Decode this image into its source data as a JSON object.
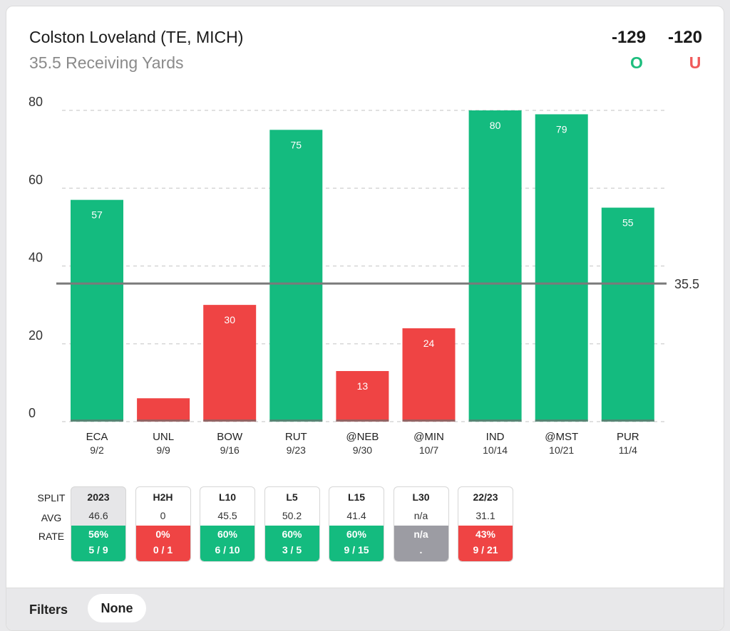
{
  "header": {
    "player": "Colston Loveland (TE, MICH)",
    "prop": "35.5 Receiving Yards",
    "over_odds": "-129",
    "under_odds": "-120",
    "over_label": "O",
    "under_label": "U"
  },
  "colors": {
    "over": "#14bb7f",
    "under": "#ef4444",
    "neutral": "#9c9ca3",
    "line": "#7a7a7a"
  },
  "chart_data": {
    "type": "bar",
    "title": "35.5 Receiving Yards",
    "ylim": [
      0,
      80
    ],
    "yticks": [
      0,
      20,
      40,
      60,
      80
    ],
    "grid": true,
    "threshold": 35.5,
    "threshold_label": "35.5",
    "categories": [
      "ECA",
      "UNL",
      "BOW",
      "RUT",
      "@NEB",
      "@MIN",
      "IND",
      "@MST",
      "PUR"
    ],
    "dates": [
      "9/2",
      "9/9",
      "9/16",
      "9/23",
      "9/30",
      "10/7",
      "10/14",
      "10/21",
      "11/4"
    ],
    "values": [
      57,
      6,
      30,
      75,
      13,
      24,
      80,
      79,
      55
    ],
    "value_labels": [
      "57",
      "",
      "30",
      "75",
      "13",
      "24",
      "80",
      "79",
      "55"
    ]
  },
  "splits": {
    "row_labels": [
      "SPLIT",
      "AVG",
      "RATE"
    ],
    "items": [
      {
        "title": "2023",
        "avg": "46.6",
        "rate": "56%",
        "record": "5 / 9",
        "status": "green",
        "active": true
      },
      {
        "title": "H2H",
        "avg": "0",
        "rate": "0%",
        "record": "0 / 1",
        "status": "red",
        "active": false
      },
      {
        "title": "L10",
        "avg": "45.5",
        "rate": "60%",
        "record": "6 / 10",
        "status": "green",
        "active": false
      },
      {
        "title": "L5",
        "avg": "50.2",
        "rate": "60%",
        "record": "3 / 5",
        "status": "green",
        "active": false
      },
      {
        "title": "L15",
        "avg": "41.4",
        "rate": "60%",
        "record": "9 / 15",
        "status": "green",
        "active": false
      },
      {
        "title": "L30",
        "avg": "n/a",
        "rate": "n/a",
        "record": ".",
        "status": "gray",
        "active": false
      },
      {
        "title": "22/23",
        "avg": "31.1",
        "rate": "43%",
        "record": "9 / 21",
        "status": "red",
        "active": false
      }
    ]
  },
  "filters": {
    "label": "Filters",
    "value": "None"
  }
}
